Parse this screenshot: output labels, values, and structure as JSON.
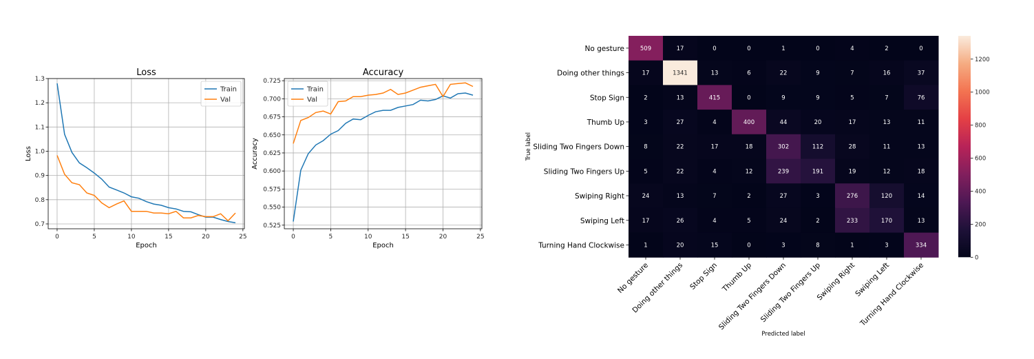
{
  "chart_data": [
    {
      "type": "line",
      "title": "Loss",
      "xlabel": "Epoch",
      "ylabel": "Loss",
      "xlim": [
        -1.2,
        25.2
      ],
      "ylim": [
        0.68,
        1.3
      ],
      "xticks": [
        0,
        5,
        10,
        15,
        20,
        25
      ],
      "yticks": [
        0.7,
        0.8,
        0.9,
        1.0,
        1.1,
        1.2,
        1.3
      ],
      "ytick_labels": [
        "0.7",
        "0.8",
        "0.9",
        "1.0",
        "1.1",
        "1.2",
        "1.3"
      ],
      "grid": true,
      "legend_position": "top-right",
      "x": [
        0,
        1,
        2,
        3,
        4,
        5,
        6,
        7,
        8,
        9,
        10,
        11,
        12,
        13,
        14,
        15,
        16,
        17,
        18,
        19,
        20,
        21,
        22,
        23,
        24
      ],
      "series": [
        {
          "name": "Train",
          "color": "#1f77b4",
          "values": [
            1.28,
            1.07,
            0.995,
            0.952,
            0.932,
            0.91,
            0.885,
            0.852,
            0.84,
            0.828,
            0.812,
            0.806,
            0.792,
            0.782,
            0.777,
            0.767,
            0.762,
            0.752,
            0.75,
            0.738,
            0.728,
            0.728,
            0.718,
            0.71,
            0.705
          ]
        },
        {
          "name": "Val",
          "color": "#ff7f0e",
          "values": [
            0.983,
            0.905,
            0.87,
            0.862,
            0.828,
            0.818,
            0.787,
            0.767,
            0.782,
            0.795,
            0.752,
            0.752,
            0.752,
            0.745,
            0.745,
            0.742,
            0.752,
            0.725,
            0.725,
            0.735,
            0.73,
            0.73,
            0.742,
            0.713,
            0.745
          ]
        }
      ]
    },
    {
      "type": "line",
      "title": "Accuracy",
      "xlabel": "Epoch",
      "ylabel": "Accuracy",
      "xlim": [
        -1.2,
        25.2
      ],
      "ylim": [
        0.52,
        0.728
      ],
      "xticks": [
        0,
        5,
        10,
        15,
        20,
        25
      ],
      "yticks": [
        0.525,
        0.55,
        0.575,
        0.6,
        0.625,
        0.65,
        0.675,
        0.7,
        0.725
      ],
      "ytick_labels": [
        "0.525",
        "0.550",
        "0.575",
        "0.600",
        "0.625",
        "0.650",
        "0.675",
        "0.700",
        "0.725"
      ],
      "grid": true,
      "legend_position": "top-left",
      "x": [
        0,
        1,
        2,
        3,
        4,
        5,
        6,
        7,
        8,
        9,
        10,
        11,
        12,
        13,
        14,
        15,
        16,
        17,
        18,
        19,
        20,
        21,
        22,
        23,
        24
      ],
      "series": [
        {
          "name": "Train",
          "color": "#1f77b4",
          "values": [
            0.53,
            0.601,
            0.624,
            0.636,
            0.642,
            0.651,
            0.656,
            0.666,
            0.672,
            0.671,
            0.677,
            0.682,
            0.684,
            0.684,
            0.688,
            0.69,
            0.692,
            0.698,
            0.697,
            0.699,
            0.704,
            0.701,
            0.707,
            0.708,
            0.705
          ]
        },
        {
          "name": "Val",
          "color": "#ff7f0e",
          "values": [
            0.638,
            0.67,
            0.674,
            0.681,
            0.683,
            0.679,
            0.696,
            0.697,
            0.703,
            0.703,
            0.705,
            0.706,
            0.708,
            0.713,
            0.706,
            0.708,
            0.712,
            0.716,
            0.718,
            0.72,
            0.703,
            0.72,
            0.721,
            0.722,
            0.717
          ]
        }
      ]
    },
    {
      "type": "heatmap",
      "xlabel": "Predicted label",
      "ylabel": "True label",
      "categories": [
        "No gesture",
        "Doing other things",
        "Stop Sign",
        "Thumb Up",
        "Sliding Two Fingers Down",
        "Sliding Two Fingers Up",
        "Swiping Right",
        "Swiping Left",
        "Turning Hand Clockwise"
      ],
      "values": [
        [
          509,
          17,
          0,
          0,
          1,
          0,
          4,
          2,
          0
        ],
        [
          17,
          1341,
          13,
          6,
          22,
          9,
          7,
          16,
          37
        ],
        [
          2,
          13,
          415,
          0,
          9,
          9,
          5,
          7,
          76
        ],
        [
          3,
          27,
          4,
          400,
          44,
          20,
          17,
          13,
          11
        ],
        [
          8,
          22,
          17,
          18,
          302,
          112,
          28,
          11,
          13
        ],
        [
          5,
          22,
          4,
          12,
          239,
          191,
          19,
          12,
          18
        ],
        [
          24,
          13,
          7,
          2,
          27,
          3,
          276,
          120,
          14
        ],
        [
          17,
          26,
          4,
          5,
          24,
          2,
          233,
          170,
          13
        ],
        [
          1,
          20,
          15,
          0,
          3,
          8,
          1,
          3,
          334
        ]
      ],
      "colorbar": {
        "min": 0,
        "max": 1341,
        "ticks": [
          0,
          200,
          400,
          600,
          800,
          1000,
          1200
        ],
        "colormap": "rocket"
      }
    }
  ]
}
